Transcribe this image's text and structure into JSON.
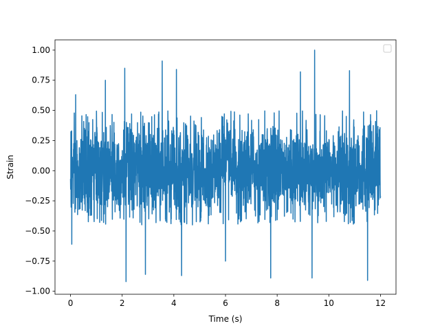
{
  "chart_data": {
    "type": "line",
    "title": "",
    "xlabel": "Time (s)",
    "ylabel": "Strain",
    "xlim": [
      -0.6,
      12.6
    ],
    "ylim": [
      -1.025,
      1.085
    ],
    "xticks": [
      0,
      2,
      4,
      6,
      8,
      10,
      12
    ],
    "xtick_labels": [
      "0",
      "2",
      "4",
      "6",
      "8",
      "10",
      "12"
    ],
    "yticks": [
      -1.0,
      -0.75,
      -0.5,
      -0.25,
      0.0,
      0.25,
      0.5,
      0.75,
      1.0
    ],
    "ytick_labels": [
      "−1.00",
      "−0.75",
      "−0.50",
      "−0.25",
      "0.00",
      "0.25",
      "0.50",
      "0.75",
      "1.00"
    ],
    "grid": false,
    "legend": {
      "placement": "upper-right",
      "entries": []
    },
    "series": [
      {
        "color": "#1f77b4",
        "x_start": 0.0,
        "x_end": 12.0,
        "typical_envelope": [
          -0.45,
          0.5
        ],
        "notable_peaks": [
          {
            "x": 2.1,
            "y": 0.85
          },
          {
            "x": 3.55,
            "y": 0.91
          },
          {
            "x": 4.1,
            "y": 0.84
          },
          {
            "x": 9.45,
            "y": 1.0
          },
          {
            "x": 0.2,
            "y": 0.63
          },
          {
            "x": 1.35,
            "y": 0.75
          },
          {
            "x": 8.9,
            "y": 0.82
          },
          {
            "x": 10.8,
            "y": 0.83
          }
        ],
        "notable_troughs": [
          {
            "x": 2.15,
            "y": -0.92
          },
          {
            "x": 2.9,
            "y": -0.86
          },
          {
            "x": 4.3,
            "y": -0.87
          },
          {
            "x": 7.75,
            "y": -0.89
          },
          {
            "x": 9.35,
            "y": -0.89
          },
          {
            "x": 11.5,
            "y": -0.91
          },
          {
            "x": 0.05,
            "y": -0.61
          },
          {
            "x": 6.0,
            "y": -0.75
          }
        ]
      }
    ]
  }
}
